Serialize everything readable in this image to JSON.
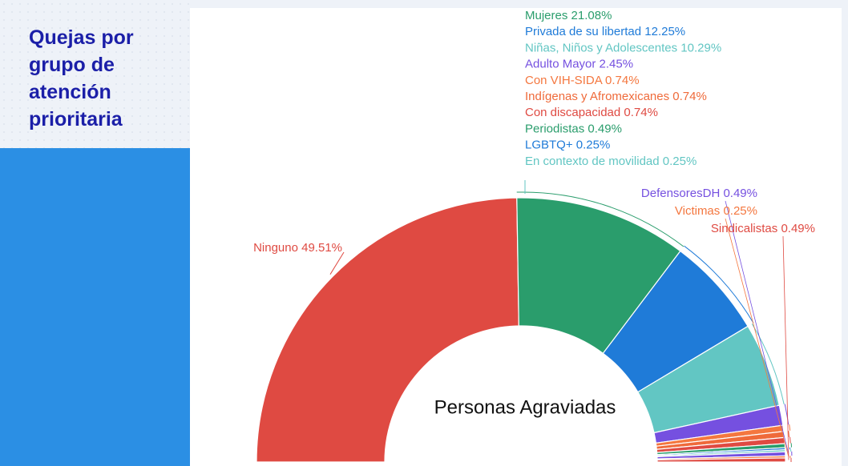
{
  "chart_data": {
    "type": "pie",
    "title": "Quejas por grupo de atención prioritaria",
    "center_label": "Personas Agraviadas",
    "categories": [
      "Ninguno",
      "Mujeres",
      "Privada de su libertad",
      "Niñas, Niños y Adolescentes",
      "Adulto Mayor",
      "Con VIH-SIDA",
      "Indígenas y Afromexicanes",
      "Con discapacidad",
      "Periodistas",
      "LGBTQ+",
      "En contexto de movilidad",
      "DefensoresDH",
      "Victimas",
      "Sindicalistas"
    ],
    "values": [
      49.51,
      21.08,
      12.25,
      10.29,
      2.45,
      0.74,
      0.74,
      0.74,
      0.49,
      0.25,
      0.25,
      0.49,
      0.25,
      0.49
    ],
    "value_labels": [
      "49.51%",
      "21.08%",
      "12.25%",
      "10.29%",
      "2.45%",
      "0.74%",
      "0.74%",
      "0.74%",
      "0.49%",
      "0.25%",
      "0.25%",
      "0.49%",
      "0.25%",
      "0.49%"
    ],
    "colors": [
      "#df4a42",
      "#2a9d6c",
      "#1f7bd8",
      "#62c6c3",
      "#7550e0",
      "#f4773f",
      "#ef6a3a",
      "#df4a42",
      "#2a9d6c",
      "#1f7bd8",
      "#62c6c3",
      "#7550e0",
      "#f4773f",
      "#df4a42"
    ]
  }
}
